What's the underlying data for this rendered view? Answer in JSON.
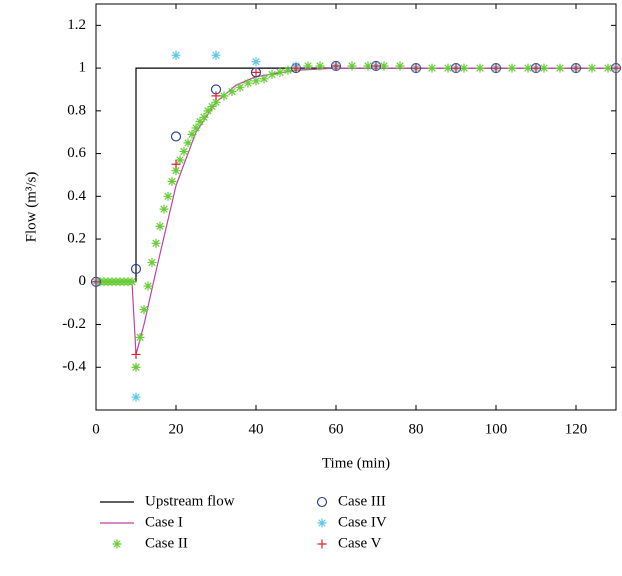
{
  "chart_data": {
    "type": "line",
    "xlabel": "Time (min)",
    "ylabel": "Flow (m³/s)",
    "xlim": [
      0,
      130
    ],
    "ylim": [
      -0.6,
      1.3
    ],
    "xticks": [
      0,
      20,
      40,
      60,
      80,
      100,
      120
    ],
    "yticks": [
      -0.4,
      -0.2,
      0,
      0.2,
      0.4,
      0.6,
      0.8,
      1,
      1.2
    ],
    "series": [
      {
        "name": "Upstream flow",
        "color": "#000000",
        "marker": "line",
        "x": [
          0,
          10,
          10,
          130
        ],
        "values": [
          0,
          0,
          1,
          1
        ]
      },
      {
        "name": "Case I",
        "color": "#c040a8",
        "marker": "line",
        "x": [
          0,
          9,
          10,
          12,
          15,
          20,
          25,
          30,
          35,
          40,
          50,
          60,
          70,
          80,
          130
        ],
        "values": [
          0,
          0,
          -0.34,
          -0.2,
          0.05,
          0.45,
          0.7,
          0.84,
          0.92,
          0.96,
          0.99,
          1,
          1,
          1,
          1
        ]
      },
      {
        "name": "Case II",
        "color": "#66cc33",
        "marker": "star",
        "x": [
          0,
          1,
          2,
          3,
          4,
          5,
          6,
          7,
          8,
          9,
          10,
          11,
          12,
          13,
          14,
          15,
          16,
          17,
          18,
          19,
          20,
          21,
          22,
          23,
          24,
          25,
          26,
          27,
          28,
          29,
          30,
          32,
          34,
          36,
          38,
          40,
          42,
          44,
          46,
          48,
          50,
          53,
          56,
          60,
          64,
          68,
          72,
          76,
          80,
          84,
          88,
          92,
          96,
          100,
          104,
          108,
          112,
          116,
          120,
          124,
          128,
          130
        ],
        "values": [
          0,
          0,
          0,
          0,
          0,
          0,
          0,
          0,
          0,
          0,
          -0.4,
          -0.26,
          -0.13,
          -0.02,
          0.09,
          0.18,
          0.26,
          0.34,
          0.4,
          0.47,
          0.52,
          0.57,
          0.61,
          0.65,
          0.69,
          0.72,
          0.75,
          0.77,
          0.8,
          0.82,
          0.84,
          0.87,
          0.89,
          0.91,
          0.93,
          0.94,
          0.95,
          0.97,
          0.98,
          0.99,
          1,
          1.01,
          1.01,
          1.01,
          1.01,
          1.01,
          1.01,
          1.01,
          1,
          1,
          1,
          1,
          1,
          1,
          1,
          1,
          1,
          1,
          1,
          1,
          1,
          1
        ]
      },
      {
        "name": "Case III",
        "color": "#1f3a93",
        "marker": "circle",
        "x": [
          0,
          10,
          20,
          30,
          40,
          50,
          60,
          70,
          80,
          90,
          100,
          110,
          120,
          130
        ],
        "values": [
          0,
          0.06,
          0.68,
          0.9,
          0.98,
          1,
          1.01,
          1.01,
          1,
          1,
          1,
          1,
          1,
          1
        ]
      },
      {
        "name": "Case IV",
        "color": "#5bc8e8",
        "marker": "star",
        "x": [
          0,
          10,
          20,
          30,
          40,
          50,
          60,
          70,
          80,
          90,
          100,
          110,
          120,
          130
        ],
        "values": [
          0,
          -0.54,
          1.06,
          1.06,
          1.03,
          1.01,
          1.01,
          1.01,
          1,
          1,
          1,
          1,
          1,
          1
        ]
      },
      {
        "name": "Case V",
        "color": "#e8202a",
        "marker": "plus",
        "x": [
          0,
          10,
          20,
          30,
          40,
          50,
          60,
          70,
          80,
          90,
          100,
          110,
          120,
          130
        ],
        "values": [
          0,
          -0.34,
          0.55,
          0.87,
          0.98,
          1,
          1.01,
          1.01,
          1,
          1,
          1,
          1,
          1,
          1
        ]
      }
    ]
  }
}
